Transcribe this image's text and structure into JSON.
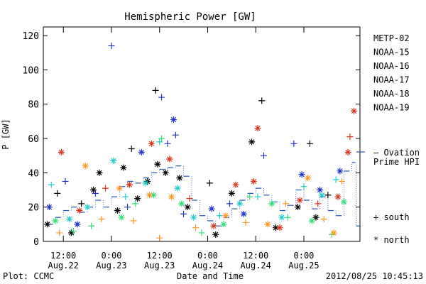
{
  "chart_data": {
    "type": "scatter",
    "title": "Hemispheric Power [GW]",
    "ylabel": "P [GW]",
    "xlabel": "Date and Time",
    "ylim": [
      0,
      125
    ],
    "xlim": [
      "2012-08-22T07:00",
      "2012-08-25T14:00"
    ],
    "yticks": [
      0,
      20,
      40,
      60,
      80,
      100,
      120
    ],
    "xticks": [
      {
        "t": "2012-08-22T12:00",
        "line1": "12:00",
        "line2": "Aug.22"
      },
      {
        "t": "2012-08-23T00:00",
        "line1": "0:00",
        "line2": "Aug.23"
      },
      {
        "t": "2012-08-23T12:00",
        "line1": "12:00",
        "line2": "Aug.23"
      },
      {
        "t": "2012-08-24T00:00",
        "line1": "0:00",
        "line2": "Aug.24"
      },
      {
        "t": "2012-08-24T12:00",
        "line1": "12:00",
        "line2": "Aug.24"
      },
      {
        "t": "2012-08-25T00:00",
        "line1": "0:00",
        "line2": "Aug.25"
      }
    ],
    "grid": false,
    "legend_position": "right",
    "series": [
      {
        "name": "METP-02",
        "color": "#000000",
        "points": [
          {
            "t": "2012-08-22T08:00",
            "hemi": "north",
            "v": 10
          },
          {
            "t": "2012-08-22T10:30",
            "hemi": "south",
            "v": 28
          },
          {
            "t": "2012-08-22T14:00",
            "hemi": "north",
            "v": 5
          },
          {
            "t": "2012-08-22T16:30",
            "hemi": "south",
            "v": 22
          },
          {
            "t": "2012-08-22T19:30",
            "hemi": "north",
            "v": 30
          },
          {
            "t": "2012-08-22T21:00",
            "hemi": "north",
            "v": 40
          },
          {
            "t": "2012-08-23T01:30",
            "hemi": "north",
            "v": 18
          },
          {
            "t": "2012-08-23T03:00",
            "hemi": "north",
            "v": 43
          },
          {
            "t": "2012-08-23T05:00",
            "hemi": "south",
            "v": 54
          },
          {
            "t": "2012-08-23T06:30",
            "hemi": "north",
            "v": 25
          },
          {
            "t": "2012-08-23T09:00",
            "hemi": "north",
            "v": 35
          },
          {
            "t": "2012-08-23T11:00",
            "hemi": "south",
            "v": 88
          },
          {
            "t": "2012-08-23T11:30",
            "hemi": "north",
            "v": 45
          },
          {
            "t": "2012-08-23T13:30",
            "hemi": "north",
            "v": 40
          },
          {
            "t": "2012-08-23T17:00",
            "hemi": "north",
            "v": 37
          },
          {
            "t": "2012-08-23T19:00",
            "hemi": "north",
            "v": 20
          },
          {
            "t": "2012-08-24T00:30",
            "hemi": "south",
            "v": 34
          },
          {
            "t": "2012-08-24T02:00",
            "hemi": "north",
            "v": 4
          },
          {
            "t": "2012-08-24T06:00",
            "hemi": "north",
            "v": 28
          },
          {
            "t": "2012-08-24T11:00",
            "hemi": "north",
            "v": 58
          },
          {
            "t": "2012-08-24T13:30",
            "hemi": "south",
            "v": 82
          },
          {
            "t": "2012-08-24T17:00",
            "hemi": "north",
            "v": 8
          },
          {
            "t": "2012-08-24T22:30",
            "hemi": "north",
            "v": 20
          },
          {
            "t": "2012-08-25T01:30",
            "hemi": "south",
            "v": 57
          },
          {
            "t": "2012-08-25T03:00",
            "hemi": "north",
            "v": 14
          },
          {
            "t": "2012-08-25T06:00",
            "hemi": "south",
            "v": 27
          }
        ]
      },
      {
        "name": "NOAA-15",
        "color": "#2233cc",
        "points": [
          {
            "t": "2012-08-22T08:30",
            "hemi": "north",
            "v": 20
          },
          {
            "t": "2012-08-22T12:30",
            "hemi": "south",
            "v": 35
          },
          {
            "t": "2012-08-22T15:30",
            "hemi": "north",
            "v": 10
          },
          {
            "t": "2012-08-22T20:00",
            "hemi": "south",
            "v": 28
          },
          {
            "t": "2012-08-23T00:00",
            "hemi": "south",
            "v": 114
          },
          {
            "t": "2012-08-23T04:00",
            "hemi": "south",
            "v": 20
          },
          {
            "t": "2012-08-23T07:30",
            "hemi": "north",
            "v": 52
          },
          {
            "t": "2012-08-23T12:30",
            "hemi": "south",
            "v": 84
          },
          {
            "t": "2012-08-23T14:00",
            "hemi": "south",
            "v": 57
          },
          {
            "t": "2012-08-23T15:30",
            "hemi": "north",
            "v": 71
          },
          {
            "t": "2012-08-23T16:00",
            "hemi": "south",
            "v": 62
          },
          {
            "t": "2012-08-23T18:00",
            "hemi": "south",
            "v": 16
          },
          {
            "t": "2012-08-24T01:00",
            "hemi": "north",
            "v": 19
          },
          {
            "t": "2012-08-24T05:30",
            "hemi": "south",
            "v": 22
          },
          {
            "t": "2012-08-24T09:00",
            "hemi": "north",
            "v": 16
          },
          {
            "t": "2012-08-24T14:00",
            "hemi": "south",
            "v": 50
          },
          {
            "t": "2012-08-24T21:30",
            "hemi": "south",
            "v": 57
          },
          {
            "t": "2012-08-24T23:30",
            "hemi": "north",
            "v": 39
          },
          {
            "t": "2012-08-25T04:00",
            "hemi": "north",
            "v": 30
          },
          {
            "t": "2012-08-25T09:00",
            "hemi": "north",
            "v": 41
          }
        ]
      },
      {
        "name": "NOAA-16",
        "color": "#22cccc",
        "points": [
          {
            "t": "2012-08-22T09:00",
            "hemi": "south",
            "v": 33
          },
          {
            "t": "2012-08-22T13:30",
            "hemi": "north",
            "v": 13
          },
          {
            "t": "2012-08-22T18:00",
            "hemi": "north",
            "v": 20
          },
          {
            "t": "2012-08-23T00:30",
            "hemi": "north",
            "v": 47
          },
          {
            "t": "2012-08-23T03:30",
            "hemi": "south",
            "v": 26
          },
          {
            "t": "2012-08-23T08:30",
            "hemi": "north",
            "v": 34
          },
          {
            "t": "2012-08-23T12:00",
            "hemi": "south",
            "v": 58
          },
          {
            "t": "2012-08-23T16:30",
            "hemi": "north",
            "v": 31
          },
          {
            "t": "2012-08-23T20:30",
            "hemi": "north",
            "v": 14
          },
          {
            "t": "2012-08-24T03:00",
            "hemi": "south",
            "v": 15
          },
          {
            "t": "2012-08-24T08:00",
            "hemi": "north",
            "v": 22
          },
          {
            "t": "2012-08-24T12:30",
            "hemi": "south",
            "v": 26
          },
          {
            "t": "2012-08-24T18:30",
            "hemi": "north",
            "v": 14
          },
          {
            "t": "2012-08-25T00:00",
            "hemi": "south",
            "v": 32
          },
          {
            "t": "2012-08-25T04:30",
            "hemi": "north",
            "v": 27
          },
          {
            "t": "2012-08-25T08:00",
            "hemi": "south",
            "v": 36
          }
        ]
      },
      {
        "name": "NOAA-17",
        "color": "#33dd77",
        "points": [
          {
            "t": "2012-08-22T10:00",
            "hemi": "north",
            "v": 12
          },
          {
            "t": "2012-08-22T14:30",
            "hemi": "south",
            "v": 6
          },
          {
            "t": "2012-08-22T19:00",
            "hemi": "south",
            "v": 9
          },
          {
            "t": "2012-08-23T02:30",
            "hemi": "north",
            "v": 14
          },
          {
            "t": "2012-08-23T06:00",
            "hemi": "south",
            "v": 22
          },
          {
            "t": "2012-08-23T10:30",
            "hemi": "north",
            "v": 27
          },
          {
            "t": "2012-08-23T12:30",
            "hemi": "south",
            "v": 60
          },
          {
            "t": "2012-08-23T17:30",
            "hemi": "north",
            "v": 22
          },
          {
            "t": "2012-08-23T22:30",
            "hemi": "south",
            "v": 5
          },
          {
            "t": "2012-08-24T04:00",
            "hemi": "north",
            "v": 10
          },
          {
            "t": "2012-08-24T10:30",
            "hemi": "south",
            "v": 26
          },
          {
            "t": "2012-08-24T16:00",
            "hemi": "north",
            "v": 22
          },
          {
            "t": "2012-08-24T20:00",
            "hemi": "south",
            "v": 14
          },
          {
            "t": "2012-08-25T02:00",
            "hemi": "north",
            "v": 12
          },
          {
            "t": "2012-08-25T07:00",
            "hemi": "south",
            "v": 4
          },
          {
            "t": "2012-08-25T10:00",
            "hemi": "north",
            "v": 23
          }
        ]
      },
      {
        "name": "NOAA-18",
        "color": "#ff9922",
        "points": [
          {
            "t": "2012-08-22T11:00",
            "hemi": "south",
            "v": 5
          },
          {
            "t": "2012-08-22T17:30",
            "hemi": "north",
            "v": 44
          },
          {
            "t": "2012-08-22T21:30",
            "hemi": "south",
            "v": 13
          },
          {
            "t": "2012-08-23T02:00",
            "hemi": "north",
            "v": 31
          },
          {
            "t": "2012-08-23T05:30",
            "hemi": "south",
            "v": 12
          },
          {
            "t": "2012-08-23T09:30",
            "hemi": "north",
            "v": 27
          },
          {
            "t": "2012-08-23T12:00",
            "hemi": "south",
            "v": 2
          },
          {
            "t": "2012-08-23T15:00",
            "hemi": "north",
            "v": 26
          },
          {
            "t": "2012-08-23T21:00",
            "hemi": "south",
            "v": 8
          },
          {
            "t": "2012-08-24T04:30",
            "hemi": "north",
            "v": 15
          },
          {
            "t": "2012-08-24T09:30",
            "hemi": "south",
            "v": 11
          },
          {
            "t": "2012-08-24T15:00",
            "hemi": "north",
            "v": 10
          },
          {
            "t": "2012-08-24T19:30",
            "hemi": "south",
            "v": 22
          },
          {
            "t": "2012-08-25T01:00",
            "hemi": "north",
            "v": 37
          },
          {
            "t": "2012-08-25T05:00",
            "hemi": "south",
            "v": 13
          },
          {
            "t": "2012-08-25T07:30",
            "hemi": "north",
            "v": 5
          },
          {
            "t": "2012-08-25T09:30",
            "hemi": "south",
            "v": 35
          }
        ]
      },
      {
        "name": "NOAA-19",
        "color": "#dd3322",
        "points": [
          {
            "t": "2012-08-22T11:30",
            "hemi": "north",
            "v": 52
          },
          {
            "t": "2012-08-22T16:00",
            "hemi": "north",
            "v": 18
          },
          {
            "t": "2012-08-22T22:30",
            "hemi": "south",
            "v": 31
          },
          {
            "t": "2012-08-23T04:30",
            "hemi": "north",
            "v": 33
          },
          {
            "t": "2012-08-23T10:00",
            "hemi": "north",
            "v": 57
          },
          {
            "t": "2012-08-23T14:30",
            "hemi": "north",
            "v": 48
          },
          {
            "t": "2012-08-23T19:30",
            "hemi": "south",
            "v": 25
          },
          {
            "t": "2012-08-24T01:30",
            "hemi": "north",
            "v": 9
          },
          {
            "t": "2012-08-24T07:00",
            "hemi": "north",
            "v": 33
          },
          {
            "t": "2012-08-24T11:30",
            "hemi": "north",
            "v": 35
          },
          {
            "t": "2012-08-24T12:30",
            "hemi": "north",
            "v": 66
          },
          {
            "t": "2012-08-24T18:00",
            "hemi": "north",
            "v": 8
          },
          {
            "t": "2012-08-24T23:00",
            "hemi": "north",
            "v": 24
          },
          {
            "t": "2012-08-25T03:30",
            "hemi": "south",
            "v": 22
          },
          {
            "t": "2012-08-25T08:30",
            "hemi": "north",
            "v": 26
          },
          {
            "t": "2012-08-25T11:00",
            "hemi": "north",
            "v": 52
          },
          {
            "t": "2012-08-25T11:30",
            "hemi": "south",
            "v": 61
          },
          {
            "t": "2012-08-25T12:30",
            "hemi": "north",
            "v": 76
          }
        ]
      }
    ],
    "ovation": {
      "color": "#2255bb",
      "points": [
        {
          "t": "2012-08-22T08:00",
          "v": 10
        },
        {
          "t": "2012-08-22T10:00",
          "v": 14
        },
        {
          "t": "2012-08-22T12:00",
          "v": 18
        },
        {
          "t": "2012-08-22T14:00",
          "v": 20
        },
        {
          "t": "2012-08-22T16:00",
          "v": 17
        },
        {
          "t": "2012-08-22T18:00",
          "v": 20
        },
        {
          "t": "2012-08-22T20:00",
          "v": 24
        },
        {
          "t": "2012-08-22T22:00",
          "v": 20
        },
        {
          "t": "2012-08-23T00:00",
          "v": 26
        },
        {
          "t": "2012-08-23T02:00",
          "v": 32
        },
        {
          "t": "2012-08-23T04:00",
          "v": 35
        },
        {
          "t": "2012-08-23T06:00",
          "v": 34
        },
        {
          "t": "2012-08-23T08:00",
          "v": 37
        },
        {
          "t": "2012-08-23T10:00",
          "v": 40
        },
        {
          "t": "2012-08-23T12:00",
          "v": 42
        },
        {
          "t": "2012-08-23T14:00",
          "v": 43
        },
        {
          "t": "2012-08-23T16:00",
          "v": 44
        },
        {
          "t": "2012-08-23T18:00",
          "v": 38
        },
        {
          "t": "2012-08-23T20:00",
          "v": 24
        },
        {
          "t": "2012-08-23T22:00",
          "v": 15
        },
        {
          "t": "2012-08-24T00:00",
          "v": 12
        },
        {
          "t": "2012-08-24T02:00",
          "v": 9
        },
        {
          "t": "2012-08-24T04:00",
          "v": 14
        },
        {
          "t": "2012-08-24T06:00",
          "v": 19
        },
        {
          "t": "2012-08-24T08:00",
          "v": 24
        },
        {
          "t": "2012-08-24T10:00",
          "v": 28
        },
        {
          "t": "2012-08-24T12:00",
          "v": 31
        },
        {
          "t": "2012-08-24T14:00",
          "v": 27
        },
        {
          "t": "2012-08-24T16:00",
          "v": 23
        },
        {
          "t": "2012-08-24T18:00",
          "v": 18
        },
        {
          "t": "2012-08-24T20:00",
          "v": 21
        },
        {
          "t": "2012-08-24T22:00",
          "v": 30
        },
        {
          "t": "2012-08-25T00:00",
          "v": 24
        },
        {
          "t": "2012-08-25T02:00",
          "v": 19
        },
        {
          "t": "2012-08-25T04:00",
          "v": 26
        },
        {
          "t": "2012-08-25T06:00",
          "v": 18
        },
        {
          "t": "2012-08-25T08:00",
          "v": 15
        },
        {
          "t": "2012-08-25T10:00",
          "v": 41
        },
        {
          "t": "2012-08-25T12:00",
          "v": 46
        },
        {
          "t": "2012-08-25T13:00",
          "v": 9
        }
      ]
    },
    "legend": {
      "ovation_line1": "— Ovation",
      "ovation_line2": "Prime HPI",
      "south_label": "+ south",
      "north_label": "* north"
    }
  },
  "footer": {
    "left": "Plot: CCMC",
    "right": "2012/08/25 10:45:13"
  }
}
